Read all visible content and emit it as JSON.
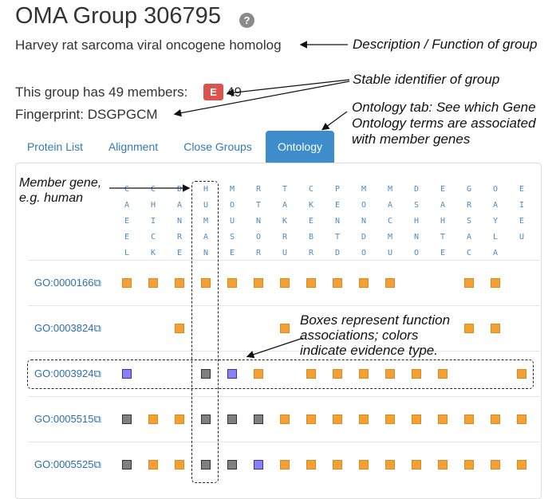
{
  "header": {
    "title": "OMA Group 306795",
    "help_icon": "?",
    "description": "Harvey rat sarcoma viral oncogene homolog",
    "members_text": "This group has 49 members:",
    "badge": "E",
    "member_count": "49",
    "fingerprint": "Fingerprint: DSGPGCM"
  },
  "annotations": {
    "desc": "Description / Function of group",
    "stable": "Stable identifier of group",
    "ontology1": "Ontology tab: See which Gene",
    "ontology2": "Ontology terms are associated",
    "ontology3": "with member genes",
    "member1": "Member gene,",
    "member2": "e.g. human",
    "boxes1": "Boxes represent function",
    "boxes2": "associations; colors",
    "boxes3": "indicate evidence type."
  },
  "tabs": [
    {
      "label": "Protein List",
      "active": false
    },
    {
      "label": "Alignment",
      "active": false
    },
    {
      "label": "Close Groups",
      "active": false
    },
    {
      "label": "Ontology",
      "active": true
    }
  ],
  "species": [
    "CAEEL",
    "CHICK",
    "DANRE",
    "HUMAN",
    "MOUSE",
    "RTNOR",
    "TAKRU",
    "CKEBR",
    "PENTD",
    "MONDO",
    "MACMU",
    "DSHNO",
    "EAHTE",
    "GRSAC",
    "OAYLA",
    "EIEU"
  ],
  "colors": {
    "orange": "#f5a033",
    "blue": "#8a7ff5",
    "gray": "#808080"
  },
  "go_rows": [
    {
      "id": "GO:0000166",
      "cells": [
        "o",
        "o",
        "o",
        "o",
        "o",
        "o",
        "o",
        "o",
        "o",
        "o",
        "o",
        "",
        "",
        "o",
        "o",
        ""
      ]
    },
    {
      "id": "GO:0003824",
      "cells": [
        "",
        "",
        "o",
        "",
        "",
        "",
        "o",
        "",
        "",
        "",
        "",
        "",
        "",
        "o",
        "o",
        ""
      ]
    },
    {
      "id": "GO:0003924",
      "cells": [
        "b",
        "",
        "",
        "g",
        "b",
        "o",
        "",
        "o",
        "o",
        "o",
        "o",
        "o",
        "o",
        "",
        "",
        "o"
      ]
    },
    {
      "id": "GO:0005515",
      "cells": [
        "g",
        "o",
        "o",
        "g",
        "g",
        "g",
        "o",
        "o",
        "o",
        "o",
        "o",
        "o",
        "o",
        "o",
        "o",
        "o"
      ]
    },
    {
      "id": "GO:0005525",
      "cells": [
        "g",
        "o",
        "o",
        "g",
        "g",
        "b",
        "o",
        "o",
        "o",
        "o",
        "o",
        "o",
        "o",
        "o",
        "o",
        "o"
      ]
    }
  ]
}
